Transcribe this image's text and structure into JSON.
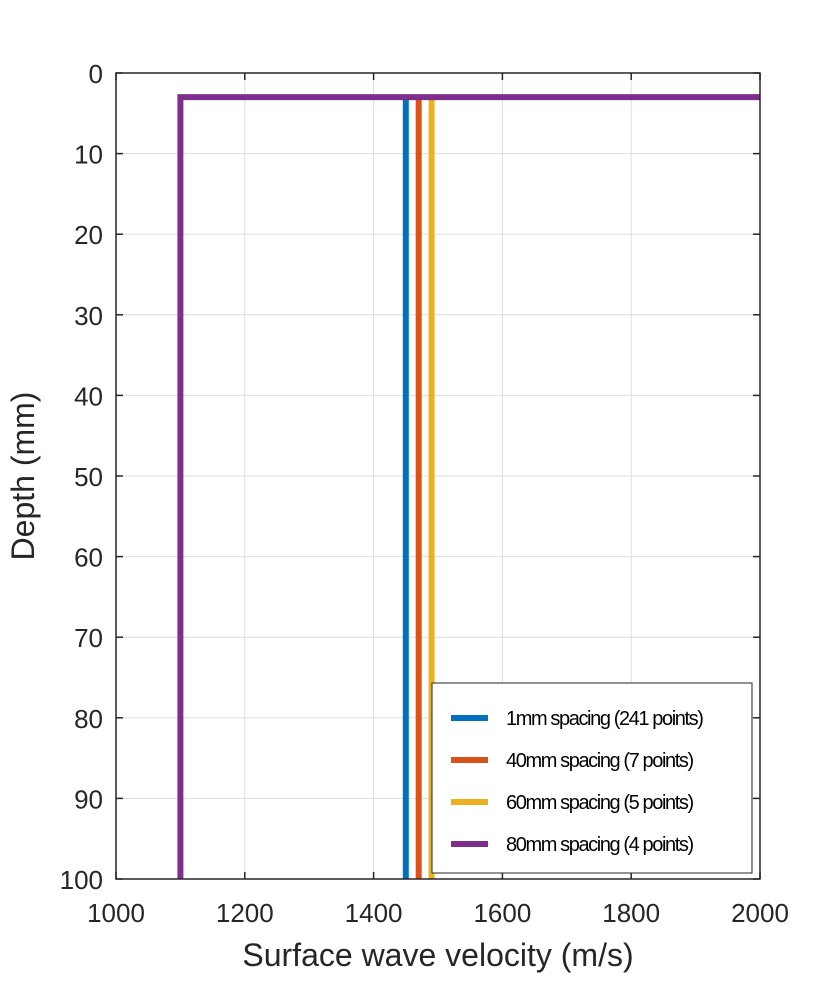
{
  "chart_data": {
    "type": "line",
    "xlabel": "Surface wave velocity (m/s)",
    "ylabel": "Depth (mm)",
    "xlim": [
      1000,
      2000
    ],
    "ylim": [
      0,
      100
    ],
    "y_reversed": true,
    "grid": true,
    "legend_position": "bottom-right",
    "xticks": [
      "1000",
      "1200",
      "1400",
      "1600",
      "1800",
      "2000"
    ],
    "yticks": [
      "0",
      "10",
      "20",
      "30",
      "40",
      "50",
      "60",
      "70",
      "80",
      "90",
      "100"
    ],
    "series": [
      {
        "name": "1mm spacing (241 points)",
        "color": "#0072BD",
        "points": [
          [
            1450,
            3
          ],
          [
            1450,
            100
          ]
        ]
      },
      {
        "name": "40mm spacing (7 points)",
        "color": "#D95319",
        "points": [
          [
            1470,
            3
          ],
          [
            1470,
            100
          ]
        ]
      },
      {
        "name": "60mm spacing (5 points)",
        "color": "#EDB120",
        "points": [
          [
            1490,
            3
          ],
          [
            1490,
            100
          ]
        ]
      },
      {
        "name": "80mm spacing (4 points)",
        "color": "#7E2F8E",
        "points": [
          [
            2000,
            3
          ],
          [
            1100,
            3
          ],
          [
            1100,
            100
          ]
        ]
      }
    ]
  }
}
